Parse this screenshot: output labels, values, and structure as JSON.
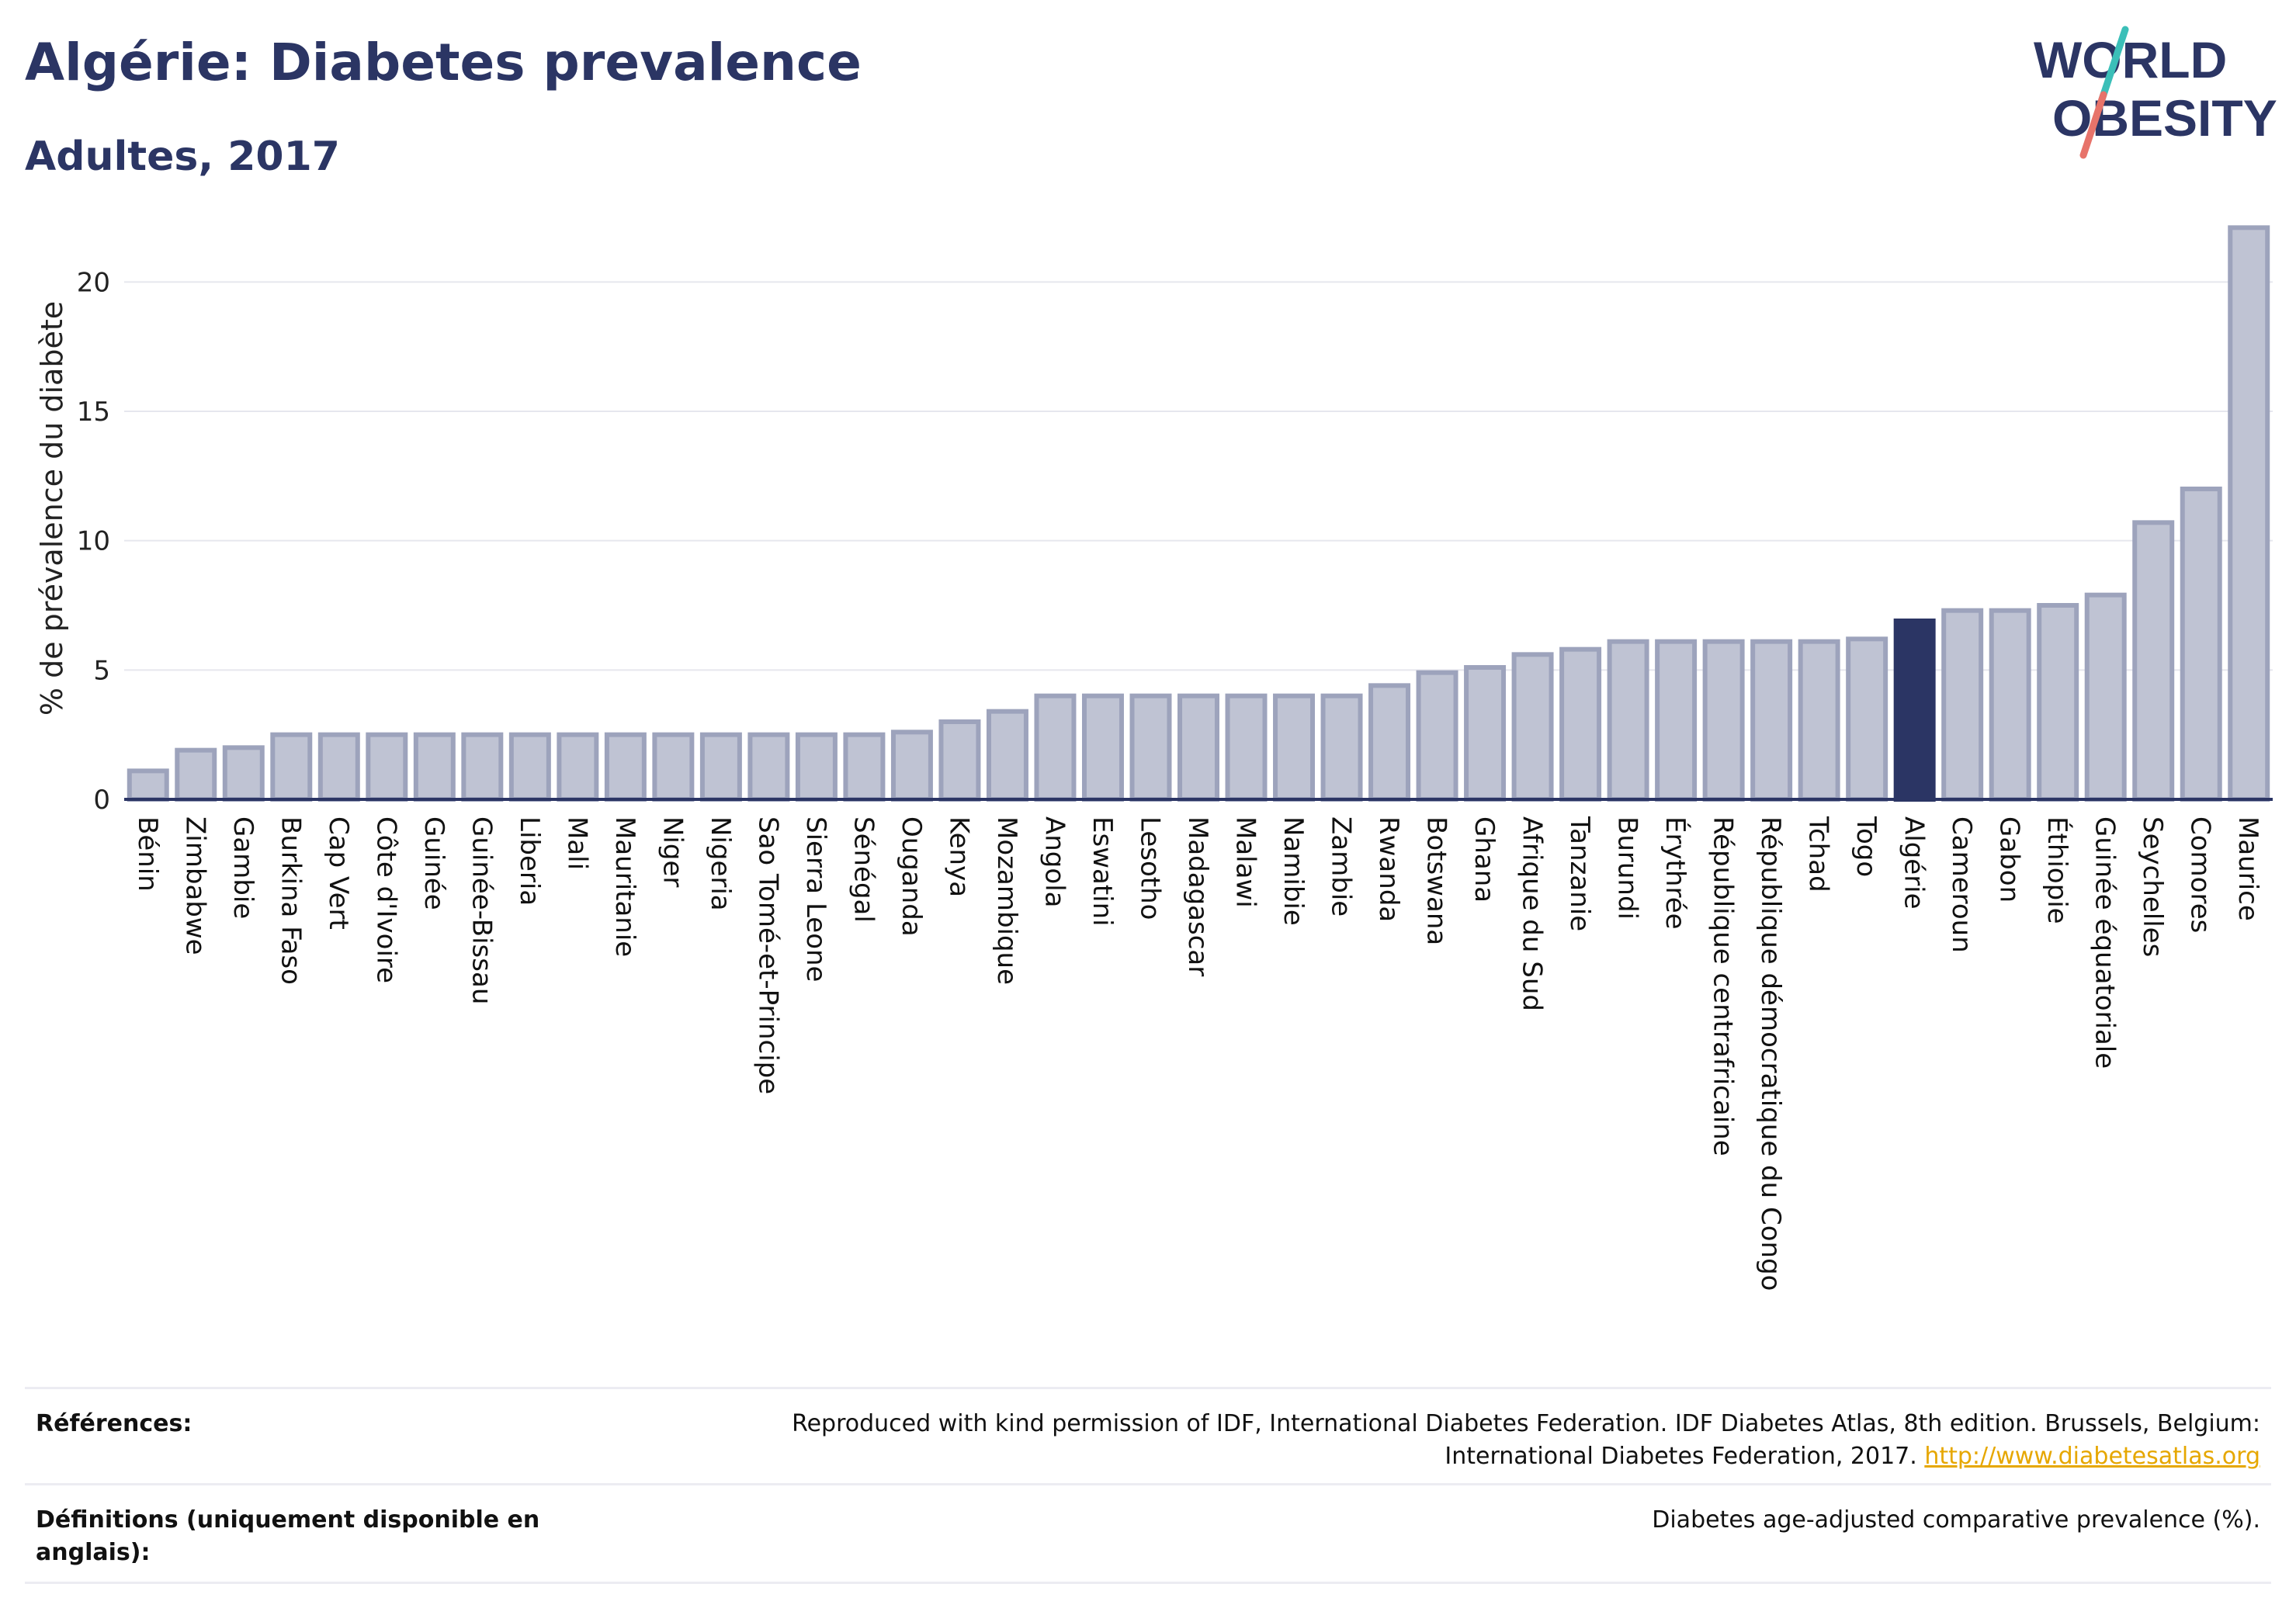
{
  "header": {
    "title": "Algérie: Diabetes prevalence",
    "subtitle": "Adultes, 2017"
  },
  "logo": {
    "line1": "WORLD",
    "line2": "OBESITY",
    "colors": {
      "text": "#2b3564",
      "slash_teal": "#3bbfb8",
      "slash_coral": "#e7736a"
    }
  },
  "colors": {
    "bar": "#bfc3d3",
    "bar_stroke": "#9da3bc",
    "highlight": "#2b3564",
    "axis": "#2b3564",
    "grid": "#e6e7ee"
  },
  "chart_data": {
    "type": "bar",
    "ylabel": "% de prévalence du diabète",
    "ylim": [
      0,
      22.5
    ],
    "yticks": [
      0,
      5,
      10,
      15,
      20
    ],
    "grid": true,
    "highlight": "Algérie",
    "categories": [
      "Bénin",
      "Zimbabwe",
      "Gambie",
      "Burkina Faso",
      "Cap Vert",
      "Côte d'Ivoire",
      "Guinée",
      "Guinée-Bissau",
      "Liberia",
      "Mali",
      "Mauritanie",
      "Niger",
      "Nigeria",
      "Sao Tomé-et-Principe",
      "Sierra Leone",
      "Sénégal",
      "Ouganda",
      "Kenya",
      "Mozambique",
      "Angola",
      "Eswatini",
      "Lesotho",
      "Madagascar",
      "Malawi",
      "Namibie",
      "Zambie",
      "Rwanda",
      "Botswana",
      "Ghana",
      "Afrique du Sud",
      "Tanzanie",
      "Burundi",
      "Érythrée",
      "République centrafricaine",
      "République démocratique du Congo",
      "Tchad",
      "Togo",
      "Algérie",
      "Cameroun",
      "Gabon",
      "Éthiopie",
      "Guinée équatoriale",
      "Seychelles",
      "Comores",
      "Maurice"
    ],
    "values": [
      1.1,
      1.9,
      2.0,
      2.5,
      2.5,
      2.5,
      2.5,
      2.5,
      2.5,
      2.5,
      2.5,
      2.5,
      2.5,
      2.5,
      2.5,
      2.5,
      2.6,
      3.0,
      3.4,
      4.0,
      4.0,
      4.0,
      4.0,
      4.0,
      4.0,
      4.0,
      4.4,
      4.9,
      5.1,
      5.6,
      5.8,
      6.1,
      6.1,
      6.1,
      6.1,
      6.1,
      6.2,
      6.9,
      7.3,
      7.3,
      7.5,
      7.9,
      10.7,
      12.0,
      22.1
    ]
  },
  "footer": {
    "references_label": "Références:",
    "references_text": "Reproduced with kind permission of IDF, International Diabetes Federation. IDF Diabetes Atlas, 8th edition. Brussels, Belgium: International Diabetes Federation, 2017.",
    "references_link": "http://www.diabetesatlas.org",
    "definitions_label": "Définitions (uniquement disponible en anglais):",
    "definitions_text": "Diabetes age-adjusted comparative prevalence (%)."
  }
}
